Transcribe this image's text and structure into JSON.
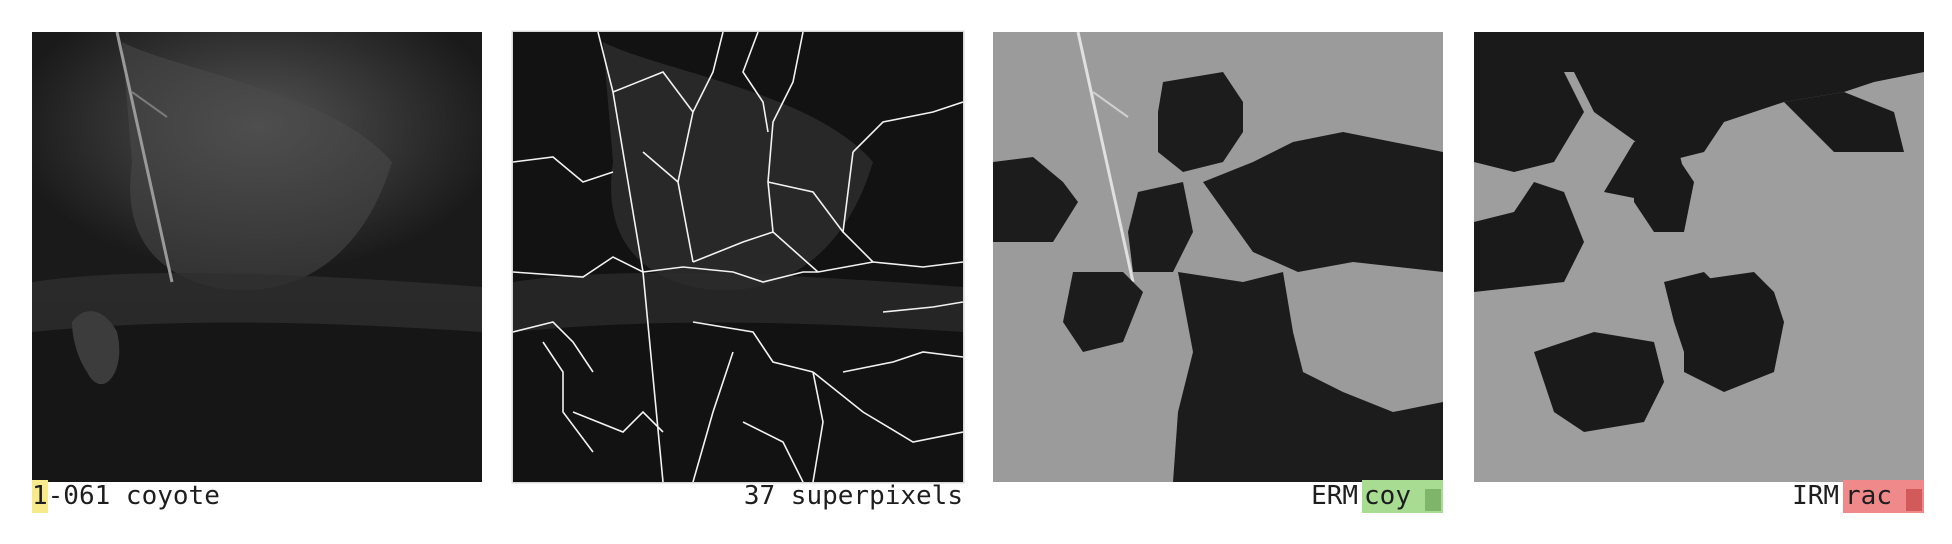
{
  "panels": [
    {
      "caption": {
        "prefix": "1",
        "rest": "-061 coyote",
        "prefix_highlight": "#f7ea8a"
      }
    },
    {
      "caption": {
        "text": "37 superpixels"
      }
    },
    {
      "caption": {
        "method": "ERM",
        "label": "coy",
        "label_bg": "#a8dc92",
        "swatch_color": "#7fb56a"
      }
    },
    {
      "caption": {
        "method": "IRM",
        "label": "rac",
        "label_bg": "#f08a8a",
        "swatch_color": "#d25a5a"
      }
    }
  ]
}
